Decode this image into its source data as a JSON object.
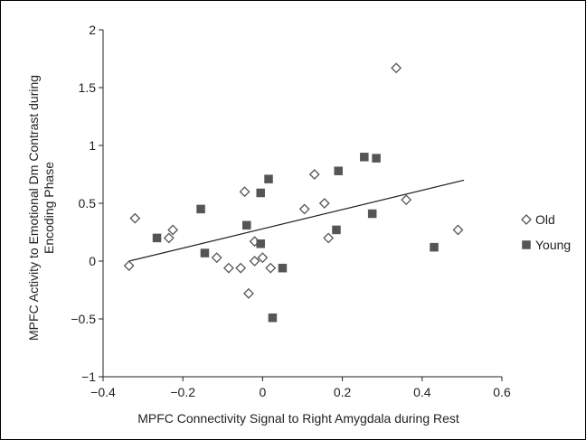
{
  "chart_data": {
    "type": "scatter",
    "xlabel": "MPFC Connectivity Signal to Right Amygdala during Rest",
    "ylabel_lines": [
      "MPFC Activity to Emotional Dm Contrast during",
      "Encoding Phase"
    ],
    "xlim": [
      -0.4,
      0.6
    ],
    "ylim": [
      -1,
      2
    ],
    "x_ticks": [
      -0.4,
      -0.2,
      0,
      0.2,
      0.4,
      0.6
    ],
    "x_tick_labels": [
      "−0.4",
      "−0.2",
      "0",
      "0.2",
      "0.4",
      "0.6"
    ],
    "y_ticks": [
      -1,
      -0.5,
      0,
      0.5,
      1,
      1.5,
      2
    ],
    "y_tick_labels": [
      "−1",
      "−0.5",
      "0",
      "0.5",
      "1",
      "1.5",
      "2"
    ],
    "grid": false,
    "legend_position": "right",
    "series": [
      {
        "name": "Old",
        "marker": "diamond-open",
        "color": "#555555",
        "points": [
          [
            -0.335,
            -0.04
          ],
          [
            -0.32,
            0.37
          ],
          [
            -0.235,
            0.2
          ],
          [
            -0.225,
            0.27
          ],
          [
            -0.115,
            0.03
          ],
          [
            -0.085,
            -0.06
          ],
          [
            -0.055,
            -0.06
          ],
          [
            -0.045,
            0.6
          ],
          [
            -0.035,
            -0.28
          ],
          [
            -0.02,
            0.17
          ],
          [
            -0.02,
            0.0
          ],
          [
            0.0,
            0.03
          ],
          [
            0.02,
            -0.06
          ],
          [
            0.105,
            0.45
          ],
          [
            0.13,
            0.75
          ],
          [
            0.155,
            0.5
          ],
          [
            0.165,
            0.2
          ],
          [
            0.335,
            1.67
          ],
          [
            0.36,
            0.53
          ],
          [
            0.49,
            0.27
          ]
        ]
      },
      {
        "name": "Young",
        "marker": "square-filled",
        "color": "#555555",
        "points": [
          [
            -0.265,
            0.2
          ],
          [
            -0.155,
            0.45
          ],
          [
            -0.145,
            0.07
          ],
          [
            -0.04,
            0.31
          ],
          [
            -0.005,
            0.59
          ],
          [
            -0.005,
            0.15
          ],
          [
            0.015,
            0.71
          ],
          [
            0.025,
            -0.49
          ],
          [
            0.05,
            -0.06
          ],
          [
            0.185,
            0.27
          ],
          [
            0.19,
            0.78
          ],
          [
            0.255,
            0.9
          ],
          [
            0.275,
            0.41
          ],
          [
            0.285,
            0.89
          ],
          [
            0.43,
            0.12
          ]
        ]
      }
    ],
    "trendline": {
      "x": [
        -0.335,
        0.505
      ],
      "y": [
        0.0,
        0.7
      ]
    }
  }
}
